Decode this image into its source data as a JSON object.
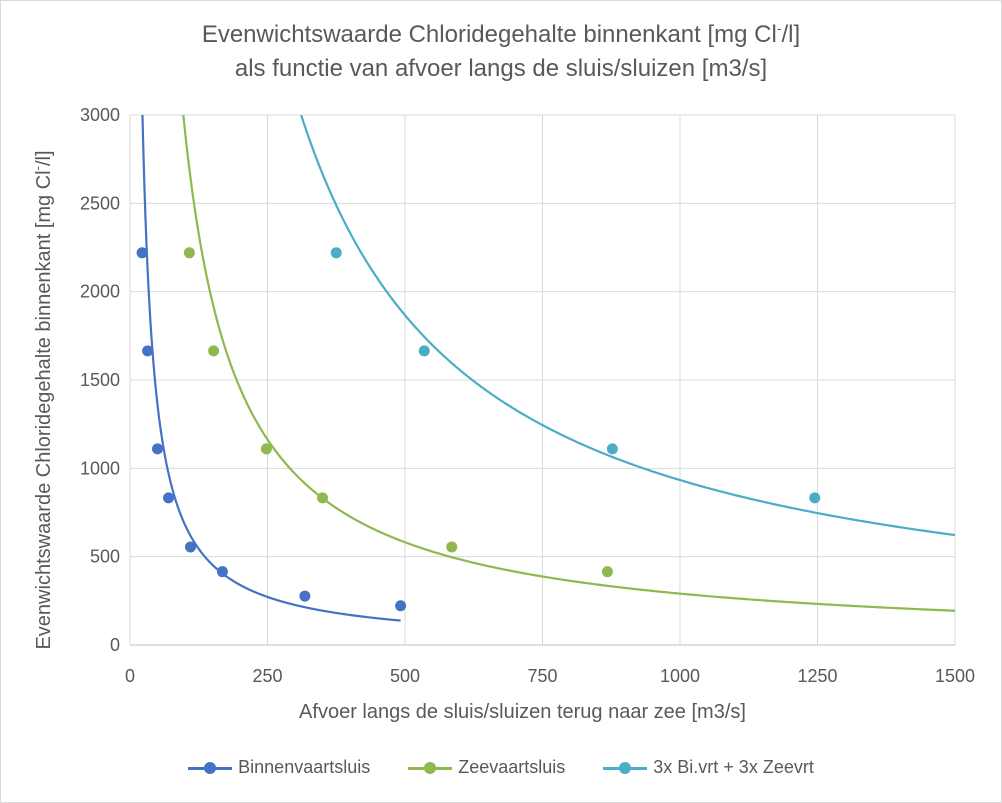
{
  "chart_data": {
    "type": "scatter",
    "title_line1": "Evenwichtswaarde Chloridegehalte binnenkant [mg Cl",
    "title_line1_sup": "-",
    "title_line1_end": "/l]",
    "title_line2": "als functie van afvoer langs de sluis/sluizen  [m3/s]",
    "xlabel": "Afvoer langs de sluis/sluizen terug naar zee [m3/s]",
    "ylabel": "Evenwichtswaarde Chloridegehalte binnenkant [mg Cl",
    "ylabel_sup": "-",
    "ylabel_end": "/l]",
    "xlim": [
      0,
      1500
    ],
    "ylim": [
      0,
      3000
    ],
    "xticks": [
      "0",
      "250",
      "500",
      "750",
      "1000",
      "1250",
      "1500"
    ],
    "yticks": [
      "0",
      "500",
      "1000",
      "1500",
      "2000",
      "2500",
      "3000"
    ],
    "grid": true,
    "legend_position": "bottom",
    "series": [
      {
        "name": "Binnenvaartsluis",
        "color": "#4472C4",
        "x": [
          22,
          32,
          50,
          70,
          110,
          168,
          318,
          492
        ],
        "y": [
          2220,
          1665,
          1110,
          833,
          555,
          415,
          277,
          222
        ]
      },
      {
        "name": "Zeevaartsluis",
        "color": "#8FB84E",
        "x": [
          108,
          152,
          248,
          350,
          585,
          868
        ],
        "y": [
          2220,
          1665,
          1110,
          833,
          555,
          415
        ]
      },
      {
        "name": "3x Bi.vrt + 3x Zeevrt",
        "color": "#4BACC6",
        "x": [
          375,
          535,
          877,
          1245
        ],
        "y": [
          2220,
          1665,
          1110,
          833
        ]
      }
    ]
  }
}
